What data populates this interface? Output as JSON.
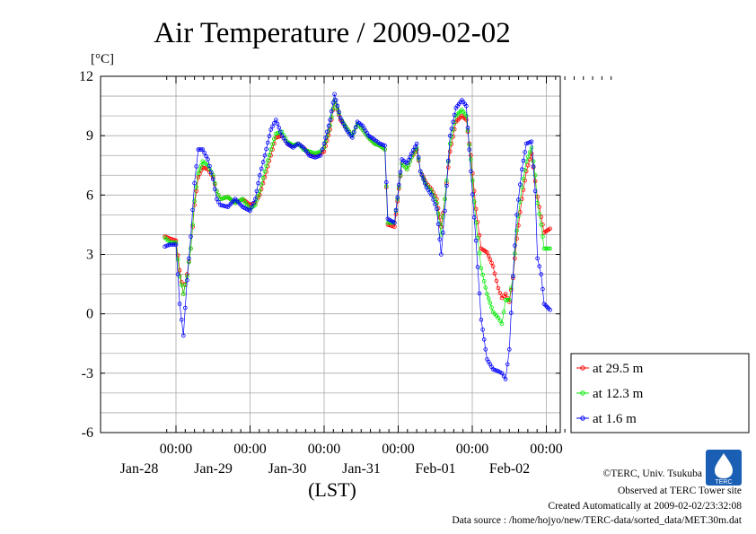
{
  "chart_data": {
    "type": "line",
    "title": "Air Temperature / 2009-02-02",
    "ylabel": "[°C]",
    "xlabel": "(LST)",
    "ylim": [
      -6,
      12
    ],
    "yticks": [
      12,
      9,
      6,
      3,
      0,
      -3,
      -6
    ],
    "xlim": [
      -0.15,
      5.9
    ],
    "xticks": [
      {
        "x": 0,
        "time": "00:00",
        "date": "Jan-28"
      },
      {
        "x": 1,
        "time": "00:00",
        "date": "Jan-29"
      },
      {
        "x": 2,
        "time": "00:00",
        "date": "Jan-30"
      },
      {
        "x": 3,
        "time": "00:00",
        "date": "Jan-31"
      },
      {
        "x": 4,
        "time": "00:00",
        "date": "Feb-01"
      },
      {
        "x": 5,
        "time": "00:00",
        "date": "Feb-02"
      }
    ],
    "grid": true,
    "legend_position": "right-bottom",
    "series": [
      {
        "name": "at 29.5 m",
        "color": "#ff0000",
        "points": [
          [
            -0.15,
            3.9
          ],
          [
            -0.08,
            3.8
          ],
          [
            0.0,
            3.7
          ],
          [
            0.05,
            2.2
          ],
          [
            0.1,
            1.0
          ],
          [
            0.15,
            2.0
          ],
          [
            0.2,
            3.3
          ],
          [
            0.25,
            5.5
          ],
          [
            0.3,
            6.9
          ],
          [
            0.36,
            7.4
          ],
          [
            0.43,
            7.3
          ],
          [
            0.5,
            6.9
          ],
          [
            0.55,
            6.2
          ],
          [
            0.6,
            5.8
          ],
          [
            0.7,
            5.9
          ],
          [
            0.8,
            5.6
          ],
          [
            0.9,
            5.8
          ],
          [
            1.0,
            5.5
          ],
          [
            1.07,
            5.6
          ],
          [
            1.13,
            6.0
          ],
          [
            1.2,
            6.9
          ],
          [
            1.28,
            8.0
          ],
          [
            1.35,
            8.9
          ],
          [
            1.43,
            9.0
          ],
          [
            1.5,
            8.6
          ],
          [
            1.58,
            8.5
          ],
          [
            1.65,
            8.6
          ],
          [
            1.72,
            8.4
          ],
          [
            1.8,
            8.1
          ],
          [
            1.88,
            8.0
          ],
          [
            1.95,
            8.1
          ],
          [
            2.0,
            8.2
          ],
          [
            2.08,
            9.3
          ],
          [
            2.14,
            10.8
          ],
          [
            2.22,
            9.8
          ],
          [
            2.3,
            9.4
          ],
          [
            2.38,
            9.0
          ],
          [
            2.45,
            9.6
          ],
          [
            2.52,
            9.3
          ],
          [
            2.6,
            8.9
          ],
          [
            2.68,
            8.6
          ],
          [
            2.75,
            8.5
          ],
          [
            2.82,
            8.3
          ],
          [
            2.86,
            4.5
          ],
          [
            2.95,
            4.4
          ],
          [
            3.05,
            7.6
          ],
          [
            3.12,
            7.3
          ],
          [
            3.18,
            7.9
          ],
          [
            3.25,
            8.3
          ],
          [
            3.3,
            7.2
          ],
          [
            3.38,
            6.6
          ],
          [
            3.45,
            6.3
          ],
          [
            3.52,
            5.8
          ],
          [
            3.58,
            4.4
          ],
          [
            3.63,
            5.8
          ],
          [
            3.7,
            8.2
          ],
          [
            3.78,
            9.7
          ],
          [
            3.86,
            10.0
          ],
          [
            3.92,
            9.8
          ],
          [
            3.98,
            8.0
          ],
          [
            4.05,
            5.3
          ],
          [
            4.12,
            3.3
          ],
          [
            4.2,
            3.1
          ],
          [
            4.28,
            2.4
          ],
          [
            4.35,
            1.3
          ],
          [
            4.4,
            0.8
          ],
          [
            4.45,
            1.0
          ],
          [
            4.5,
            0.6
          ],
          [
            4.55,
            1.8
          ],
          [
            4.6,
            3.8
          ],
          [
            4.67,
            5.8
          ],
          [
            4.73,
            7.2
          ],
          [
            4.8,
            8.1
          ],
          [
            4.85,
            6.7
          ],
          [
            4.88,
            5.9
          ],
          [
            4.93,
            4.9
          ],
          [
            4.97,
            4.1
          ],
          [
            5.05,
            4.3
          ]
        ]
      },
      {
        "name": "at 12.3 m",
        "color": "#00ee00",
        "points": [
          [
            -0.15,
            3.85
          ],
          [
            -0.08,
            3.6
          ],
          [
            0.0,
            3.6
          ],
          [
            0.05,
            1.9
          ],
          [
            0.1,
            1.0
          ],
          [
            0.15,
            1.9
          ],
          [
            0.2,
            3.3
          ],
          [
            0.25,
            5.7
          ],
          [
            0.3,
            7.1
          ],
          [
            0.36,
            7.7
          ],
          [
            0.43,
            7.5
          ],
          [
            0.5,
            7.0
          ],
          [
            0.55,
            6.2
          ],
          [
            0.6,
            5.8
          ],
          [
            0.7,
            5.9
          ],
          [
            0.8,
            5.6
          ],
          [
            0.9,
            5.8
          ],
          [
            1.0,
            5.3
          ],
          [
            1.07,
            5.5
          ],
          [
            1.13,
            6.2
          ],
          [
            1.2,
            7.2
          ],
          [
            1.28,
            8.3
          ],
          [
            1.35,
            9.1
          ],
          [
            1.43,
            9.2
          ],
          [
            1.5,
            8.7
          ],
          [
            1.58,
            8.5
          ],
          [
            1.65,
            8.6
          ],
          [
            1.72,
            8.3
          ],
          [
            1.8,
            8.2
          ],
          [
            1.88,
            8.1
          ],
          [
            1.95,
            8.2
          ],
          [
            2.0,
            8.4
          ],
          [
            2.08,
            9.5
          ],
          [
            2.14,
            10.8
          ],
          [
            2.22,
            9.9
          ],
          [
            2.3,
            9.4
          ],
          [
            2.38,
            9.0
          ],
          [
            2.45,
            9.6
          ],
          [
            2.52,
            9.3
          ],
          [
            2.6,
            8.9
          ],
          [
            2.68,
            8.6
          ],
          [
            2.75,
            8.5
          ],
          [
            2.82,
            8.3
          ],
          [
            2.86,
            4.6
          ],
          [
            2.95,
            4.6
          ],
          [
            3.05,
            7.6
          ],
          [
            3.12,
            7.3
          ],
          [
            3.18,
            7.9
          ],
          [
            3.25,
            8.4
          ],
          [
            3.3,
            7.2
          ],
          [
            3.38,
            6.5
          ],
          [
            3.45,
            6.2
          ],
          [
            3.52,
            5.6
          ],
          [
            3.58,
            4.0
          ],
          [
            3.63,
            5.8
          ],
          [
            3.7,
            8.6
          ],
          [
            3.78,
            10.0
          ],
          [
            3.86,
            10.3
          ],
          [
            3.92,
            10.0
          ],
          [
            3.98,
            7.8
          ],
          [
            4.05,
            4.6
          ],
          [
            4.12,
            2.3
          ],
          [
            4.2,
            1.0
          ],
          [
            4.28,
            0.1
          ],
          [
            4.35,
            -0.2
          ],
          [
            4.4,
            -0.5
          ],
          [
            4.45,
            0.7
          ],
          [
            4.5,
            0.7
          ],
          [
            4.55,
            1.9
          ],
          [
            4.6,
            4.2
          ],
          [
            4.67,
            6.4
          ],
          [
            4.73,
            7.7
          ],
          [
            4.8,
            8.4
          ],
          [
            4.85,
            7.0
          ],
          [
            4.88,
            5.6
          ],
          [
            4.93,
            4.5
          ],
          [
            4.97,
            3.3
          ],
          [
            5.05,
            3.3
          ]
        ]
      },
      {
        "name": "at 1.6 m",
        "color": "#0000ff",
        "points": [
          [
            -0.15,
            3.4
          ],
          [
            -0.08,
            3.5
          ],
          [
            0.0,
            3.5
          ],
          [
            0.05,
            0.5
          ],
          [
            0.1,
            -1.1
          ],
          [
            0.15,
            1.7
          ],
          [
            0.2,
            3.9
          ],
          [
            0.25,
            6.6
          ],
          [
            0.3,
            8.3
          ],
          [
            0.36,
            8.3
          ],
          [
            0.43,
            7.8
          ],
          [
            0.5,
            6.8
          ],
          [
            0.55,
            5.8
          ],
          [
            0.6,
            5.5
          ],
          [
            0.7,
            5.4
          ],
          [
            0.8,
            5.8
          ],
          [
            0.9,
            5.4
          ],
          [
            1.0,
            5.2
          ],
          [
            1.07,
            5.8
          ],
          [
            1.13,
            7.0
          ],
          [
            1.2,
            8.0
          ],
          [
            1.28,
            9.3
          ],
          [
            1.35,
            9.8
          ],
          [
            1.43,
            9.0
          ],
          [
            1.5,
            8.6
          ],
          [
            1.58,
            8.4
          ],
          [
            1.65,
            8.6
          ],
          [
            1.72,
            8.4
          ],
          [
            1.8,
            8.0
          ],
          [
            1.88,
            7.9
          ],
          [
            1.95,
            8.0
          ],
          [
            2.0,
            8.6
          ],
          [
            2.08,
            9.8
          ],
          [
            2.14,
            11.1
          ],
          [
            2.22,
            9.9
          ],
          [
            2.3,
            9.3
          ],
          [
            2.38,
            8.9
          ],
          [
            2.45,
            9.7
          ],
          [
            2.52,
            9.5
          ],
          [
            2.6,
            9.0
          ],
          [
            2.68,
            8.8
          ],
          [
            2.75,
            8.6
          ],
          [
            2.82,
            8.5
          ],
          [
            2.86,
            4.8
          ],
          [
            2.95,
            4.6
          ],
          [
            3.05,
            7.8
          ],
          [
            3.12,
            7.6
          ],
          [
            3.18,
            8.1
          ],
          [
            3.25,
            8.6
          ],
          [
            3.3,
            7.2
          ],
          [
            3.38,
            6.4
          ],
          [
            3.45,
            6.0
          ],
          [
            3.52,
            5.3
          ],
          [
            3.58,
            3.0
          ],
          [
            3.63,
            5.2
          ],
          [
            3.7,
            9.0
          ],
          [
            3.78,
            10.4
          ],
          [
            3.86,
            10.8
          ],
          [
            3.92,
            10.5
          ],
          [
            3.98,
            7.2
          ],
          [
            4.05,
            3.7
          ],
          [
            4.12,
            -0.3
          ],
          [
            4.2,
            -2.3
          ],
          [
            4.28,
            -2.8
          ],
          [
            4.35,
            -2.9
          ],
          [
            4.4,
            -3.0
          ],
          [
            4.45,
            -3.3
          ],
          [
            4.5,
            -1.8
          ],
          [
            4.55,
            1.9
          ],
          [
            4.6,
            5.0
          ],
          [
            4.67,
            7.3
          ],
          [
            4.73,
            8.6
          ],
          [
            4.8,
            8.7
          ],
          [
            4.85,
            6.2
          ],
          [
            4.88,
            2.8
          ],
          [
            4.93,
            2.0
          ],
          [
            4.97,
            0.5
          ],
          [
            5.05,
            0.2
          ]
        ]
      }
    ]
  },
  "credits": {
    "copyright": "©TERC, Univ. Tsukuba",
    "observed": "Observed at TERC Tower site",
    "created": "Created Automatically at 2009-02-02/23:32:08",
    "source": "Data source : /home/hojyo/new/TERC-data/sorted_data/MET.30m.dat"
  },
  "logo": {
    "text": "TERC",
    "color": "#1a5fb4"
  }
}
